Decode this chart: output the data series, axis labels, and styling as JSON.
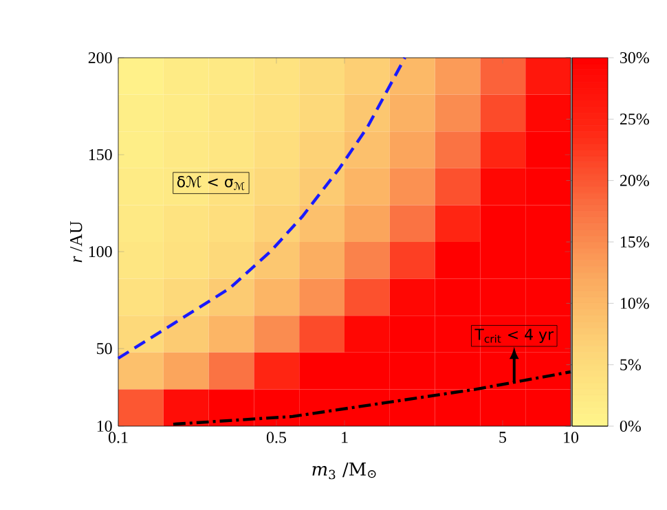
{
  "chart_data": [
    {
      "type": "heatmap",
      "categories": [
        null,
        null,
        null,
        null,
        null,
        null,
        null,
        null,
        null,
        null
      ],
      "y_categories": [
        null,
        null,
        null,
        null,
        null,
        null,
        null,
        null,
        null,
        null
      ],
      "clim": [
        0,
        30
      ],
      "cticks": [
        {
          "value": 0,
          "label": "0%"
        },
        {
          "value": 5,
          "label": "5%"
        },
        {
          "value": 10,
          "label": "10%"
        },
        {
          "value": 15,
          "label": "15%"
        },
        {
          "value": 20,
          "label": "20%"
        },
        {
          "value": 25,
          "label": "25%"
        },
        {
          "value": 30,
          "label": "30%"
        }
      ],
      "cells": [
        [
          1,
          2,
          2.5,
          3.5,
          5,
          7,
          10,
          13.5,
          19,
          26.5
        ],
        [
          1.5,
          2,
          3,
          4,
          5.5,
          8,
          11,
          15,
          21,
          29
        ],
        [
          1.5,
          2.5,
          3,
          4.5,
          6.5,
          9,
          12.5,
          17.5,
          24.5,
          30
        ],
        [
          2,
          2.5,
          4,
          5.5,
          7.5,
          10.5,
          14.5,
          20.5,
          29,
          30
        ],
        [
          2.5,
          3.5,
          4.5,
          6.5,
          9,
          12.5,
          17.5,
          24.5,
          30,
          30
        ],
        [
          3,
          4,
          5.5,
          8,
          11.5,
          16,
          22,
          30,
          30,
          30
        ],
        [
          4,
          5.5,
          7.5,
          10.5,
          14.5,
          20.5,
          29,
          30,
          30,
          30
        ],
        [
          5.5,
          7.5,
          10.5,
          15,
          21,
          29,
          30,
          30,
          30,
          30
        ],
        [
          9,
          12.5,
          17.5,
          24.5,
          30,
          30,
          30,
          30,
          30,
          30
        ],
        [
          20,
          28,
          30,
          30,
          30,
          30,
          30,
          30,
          30,
          30
        ]
      ]
    },
    {
      "type": "line",
      "xlabel": "*m*$_{3}$ /M$_{⊙}$",
      "ylabel": "*r* /AU",
      "log": "x",
      "xlim": [
        0.1,
        10
      ],
      "xticks": [
        0.1,
        0.5,
        1,
        5,
        10
      ],
      "ylim": [
        10,
        200
      ],
      "yticks": [
        10,
        50,
        100,
        150,
        200
      ],
      "series": [
        {
          "color": "#1a1aff",
          "line_style": "dashed",
          "x": [
            0.1,
            0.146,
            0.31,
            0.47,
            0.65,
            0.95,
            1.26,
            1.85
          ],
          "values": [
            45,
            57,
            81,
            100,
            118,
            143,
            164,
            200
          ]
        },
        {
          "color": "#000000",
          "line_style": "dashdot",
          "x": [
            0.175,
            0.59,
            1.5,
            3.8,
            10
          ],
          "values": [
            11,
            15,
            22,
            29,
            38
          ]
        }
      ],
      "marker": "none",
      "grid": false,
      "annotations": [
        "δℳ < σ$_{ℳ}$",
        "T$_{crit}$ < 4 yr"
      ]
    }
  ]
}
